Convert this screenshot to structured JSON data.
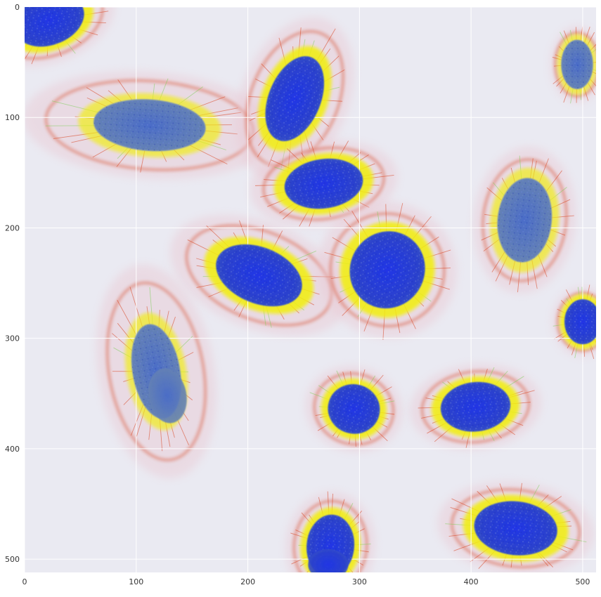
{
  "image": {
    "subject": "fluorescence microscopy of cultured cells",
    "description": "Cell nuclei stained blue, surrounded by yellow/red cytoplasmic filament staining on a light lavender background, shown with pixel-index axes.",
    "colors": {
      "background": "#eaeaf2",
      "nucleus": "#2a3fd8",
      "nucleus_dim": "#5a78b0",
      "cytoplasm_yellow": "#f2ef10",
      "filament_red": "#d8401c",
      "filament_green": "#7fcf5a",
      "grid": "#ffffff"
    }
  },
  "axes": {
    "xlim": [
      0,
      512
    ],
    "ylim": [
      512,
      0
    ],
    "grid": true,
    "x_ticks": [
      "0",
      "100",
      "200",
      "300",
      "400",
      "500"
    ],
    "y_ticks": [
      "0",
      "100",
      "200",
      "300",
      "400",
      "500"
    ]
  }
}
